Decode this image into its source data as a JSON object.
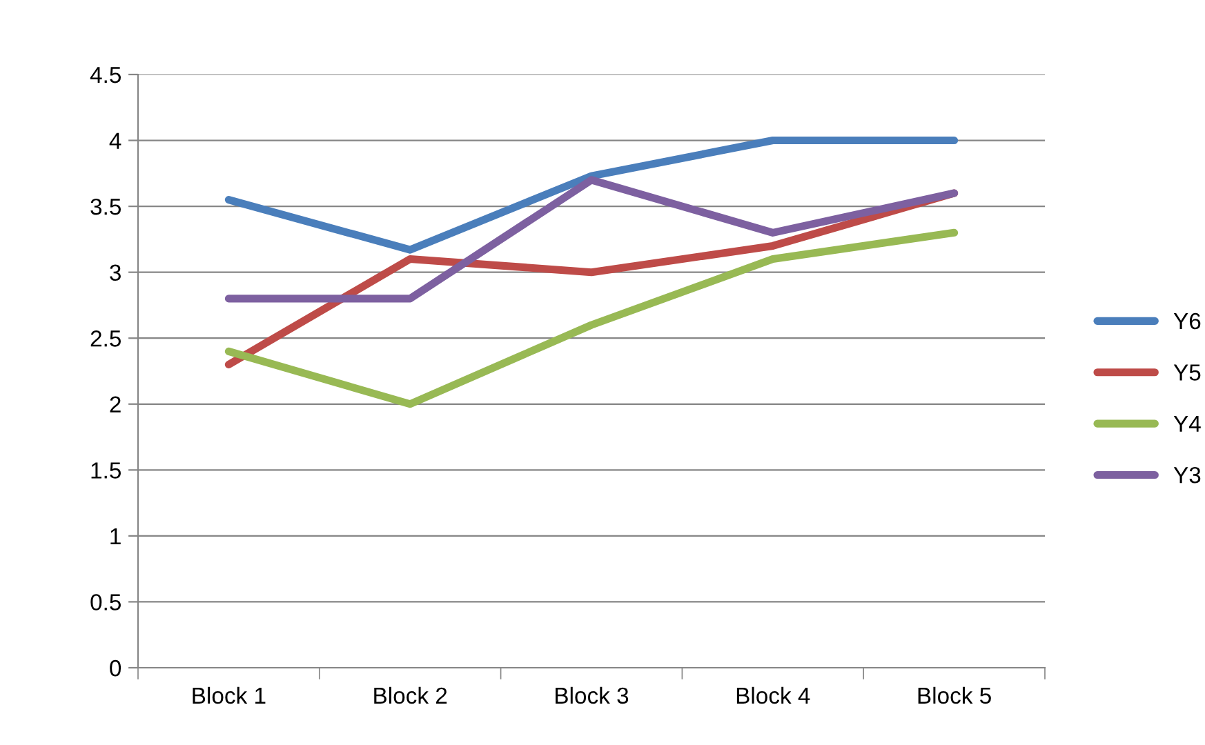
{
  "chart_data": {
    "type": "line",
    "categories": [
      "Block 1",
      "Block 2",
      "Block 3",
      "Block 4",
      "Block 5"
    ],
    "series": [
      {
        "name": "Y6",
        "color": "#4a7ebb",
        "values": [
          3.55,
          3.17,
          3.73,
          4.0,
          4.0
        ]
      },
      {
        "name": "Y5",
        "color": "#be4b48",
        "values": [
          2.3,
          3.1,
          3.0,
          3.2,
          3.6
        ]
      },
      {
        "name": "Y4",
        "color": "#98b954",
        "values": [
          2.4,
          2.0,
          2.6,
          3.1,
          3.3
        ]
      },
      {
        "name": "Y3",
        "color": "#7d60a0",
        "values": [
          2.8,
          2.8,
          3.7,
          3.3,
          3.6
        ]
      }
    ],
    "ylim": [
      0,
      4.5
    ],
    "yticks": [
      0,
      0.5,
      1,
      1.5,
      2,
      2.5,
      3,
      3.5,
      4,
      4.5
    ],
    "grid": "y",
    "legend": "right",
    "marker": "none",
    "line_style": "solid"
  }
}
